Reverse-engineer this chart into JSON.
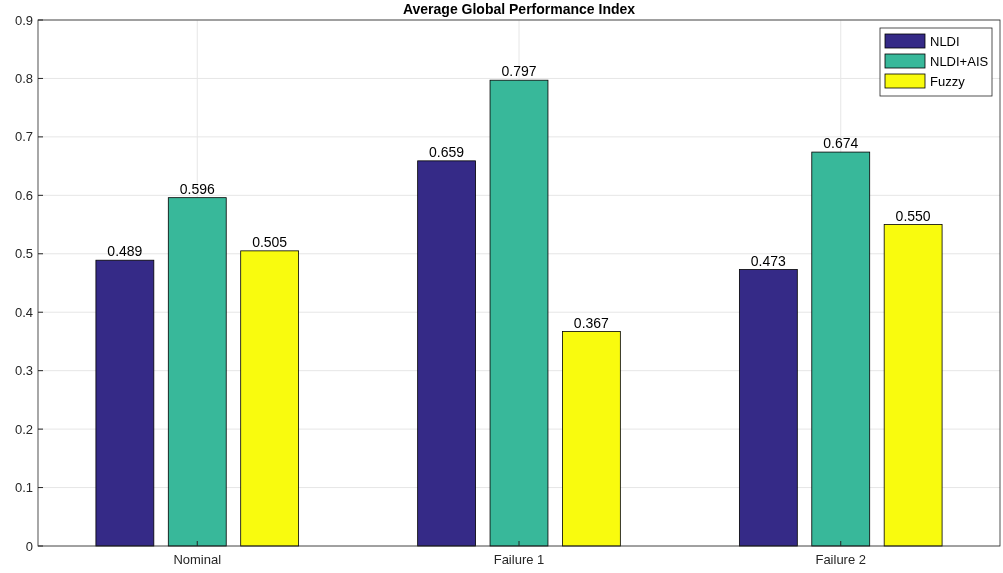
{
  "chart_data": {
    "type": "bar",
    "title": "Average Global Performance Index",
    "categories": [
      "Nominal",
      "Failure 1",
      "Failure 2"
    ],
    "series": [
      {
        "name": "NLDI",
        "color": "#352a87",
        "values": [
          0.489,
          0.659,
          0.473
        ],
        "value_labels": [
          "0.489",
          "0.659",
          "0.473"
        ]
      },
      {
        "name": "NLDI+AIS",
        "color": "#38b89a",
        "values": [
          0.596,
          0.797,
          0.674
        ],
        "value_labels": [
          "0.596",
          "0.797",
          "0.674"
        ]
      },
      {
        "name": "Fuzzy",
        "color": "#f9fb0e",
        "values": [
          0.505,
          0.367,
          0.55
        ],
        "value_labels": [
          "0.505",
          "0.367",
          "0.550"
        ]
      }
    ],
    "ylim": [
      0,
      0.9
    ],
    "yticks": [
      0,
      0.1,
      0.2,
      0.3,
      0.4,
      0.5,
      0.6,
      0.7,
      0.8,
      0.9
    ],
    "grid": true,
    "legend": "top right"
  }
}
